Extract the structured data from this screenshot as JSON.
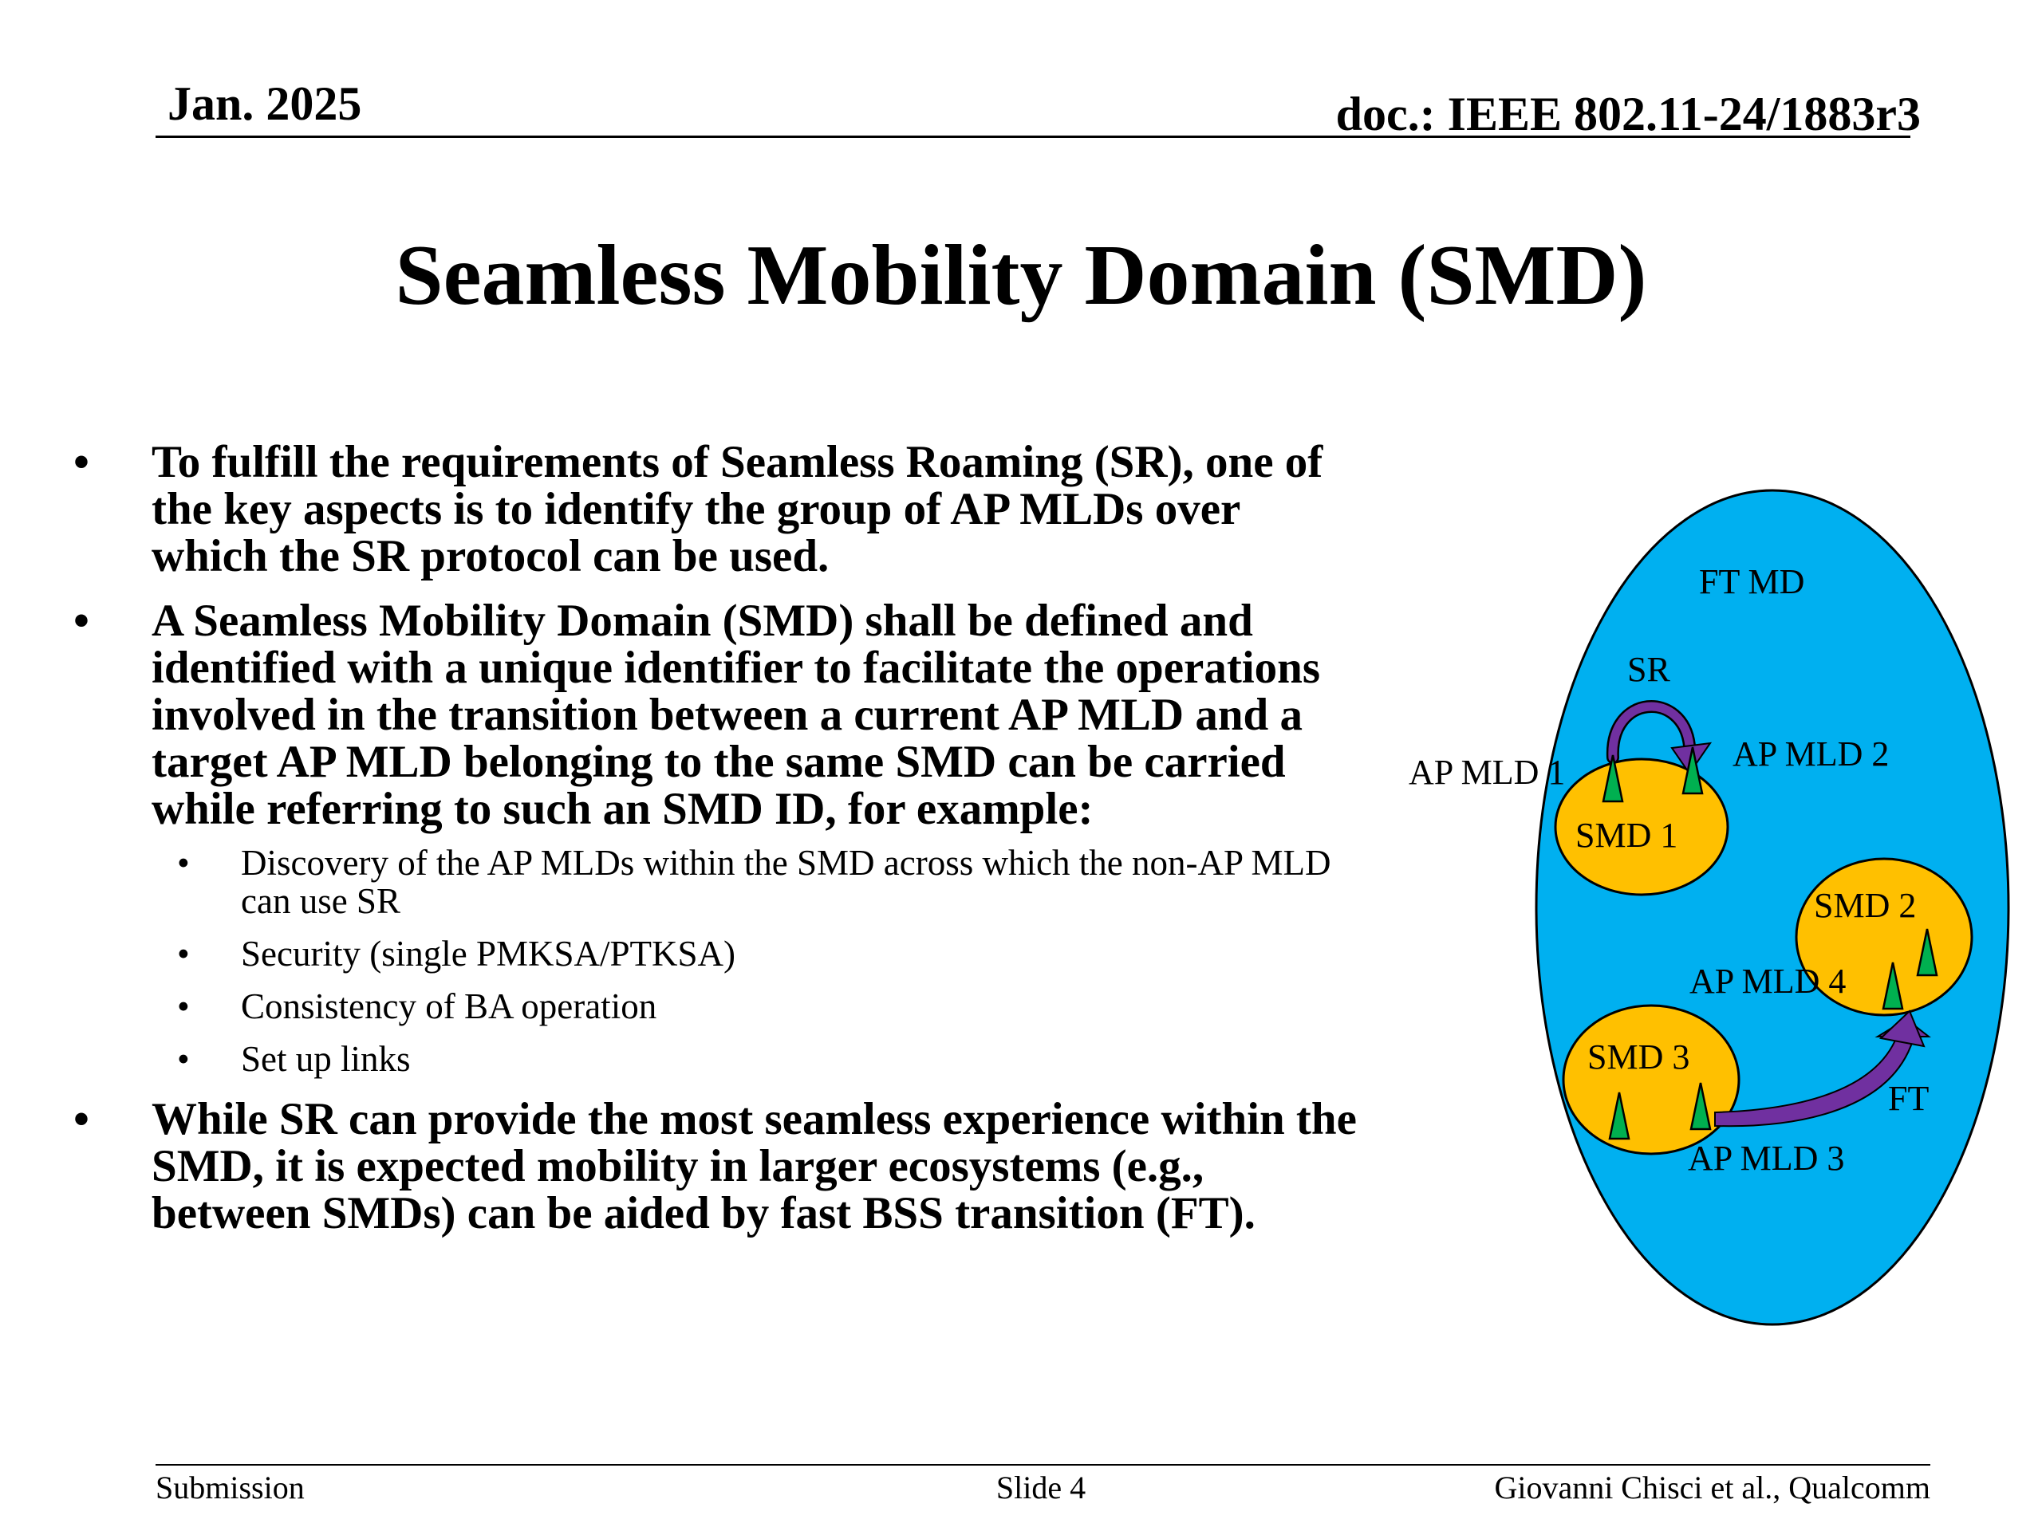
{
  "header": {
    "date": "Jan. 2025",
    "doc": "doc.: IEEE 802.11-24/1883r3"
  },
  "title": "Seamless Mobility Domain (SMD)",
  "bullets": [
    {
      "text": "To fulfill the requirements of Seamless Roaming (SR), one of the key aspects is to identify the group of AP MLDs over which the SR protocol can be used."
    },
    {
      "text": "A Seamless Mobility Domain (SMD) shall be defined and identified with a unique identifier to facilitate the operations involved in the transition between a current AP MLD and a target AP MLD belonging to the same SMD can be carried while referring to such an SMD ID, for example:",
      "sub": [
        "Discovery of the AP MLDs within the SMD across which the non-AP MLD can use SR",
        "Security (single PMKSA/PTKSA)",
        "Consistency of BA operation",
        "Set up links"
      ]
    },
    {
      "text": "While SR can provide the most seamless experience within the SMD, it is expected mobility in larger ecosystems (e.g., between SMDs) can be aided by fast BSS transition (FT)."
    }
  ],
  "diagram": {
    "ft_md_label": "FT MD",
    "sr_label": "SR",
    "ft_label": "FT",
    "smd1": "SMD 1",
    "smd2": "SMD 2",
    "smd3": "SMD 3",
    "ap_mld1": "AP MLD 1",
    "ap_mld2": "AP MLD 2",
    "ap_mld3": "AP MLD 3",
    "ap_mld4": "AP MLD 4",
    "colors": {
      "domain_fill": "#00b0f0",
      "smd_fill": "#ffc000",
      "ap_fill": "#00b050",
      "arrow_fill": "#7030a0"
    }
  },
  "footer": {
    "left": "Submission",
    "center": "Slide 4",
    "right": "Giovanni Chisci et al., Qualcomm"
  }
}
